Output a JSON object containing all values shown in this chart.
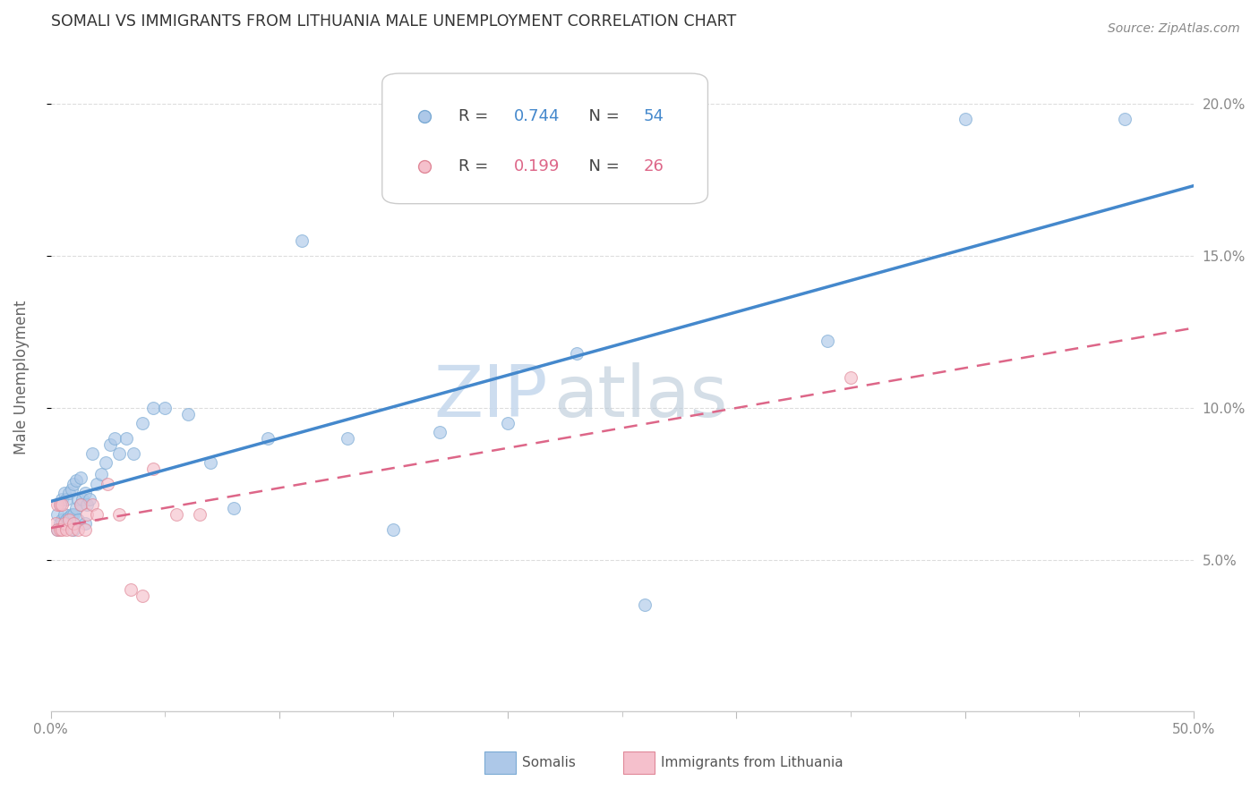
{
  "title": "SOMALI VS IMMIGRANTS FROM LITHUANIA MALE UNEMPLOYMENT CORRELATION CHART",
  "source": "Source: ZipAtlas.com",
  "ylabel": "Male Unemployment",
  "xlim": [
    0.0,
    0.5
  ],
  "ylim": [
    0.0,
    0.22
  ],
  "xtick_positions": [
    0.0,
    0.1,
    0.2,
    0.3,
    0.4,
    0.5
  ],
  "xtick_labels": [
    "0.0%",
    "",
    "",
    "",
    "",
    "50.0%"
  ],
  "ytick_positions": [
    0.05,
    0.1,
    0.15,
    0.2
  ],
  "ytick_labels": [
    "5.0%",
    "10.0%",
    "15.0%",
    "20.0%"
  ],
  "legend_somali_r": "0.744",
  "legend_somali_n": "54",
  "legend_lith_r": "0.199",
  "legend_lith_n": "26",
  "somali_fill": "#adc8e8",
  "somali_edge": "#7aaad4",
  "lith_fill": "#f5c0cc",
  "lith_edge": "#e08898",
  "somali_line_color": "#4488cc",
  "lith_line_color": "#dd6688",
  "watermark_zip": "ZIP",
  "watermark_atlas": "atlas",
  "watermark_color": "#ccdaeb",
  "grid_color": "#dddddd",
  "title_color": "#333333",
  "source_color": "#888888",
  "label_color": "#666666",
  "tick_color": "#888888",
  "somali_x": [
    0.003,
    0.003,
    0.004,
    0.004,
    0.005,
    0.005,
    0.006,
    0.006,
    0.007,
    0.007,
    0.008,
    0.008,
    0.009,
    0.009,
    0.01,
    0.01,
    0.01,
    0.011,
    0.011,
    0.012,
    0.012,
    0.013,
    0.013,
    0.014,
    0.015,
    0.015,
    0.016,
    0.017,
    0.018,
    0.02,
    0.022,
    0.024,
    0.026,
    0.028,
    0.03,
    0.033,
    0.036,
    0.04,
    0.045,
    0.05,
    0.06,
    0.07,
    0.08,
    0.095,
    0.11,
    0.13,
    0.15,
    0.17,
    0.2,
    0.23,
    0.26,
    0.34,
    0.4,
    0.47
  ],
  "somali_y": [
    0.06,
    0.065,
    0.062,
    0.068,
    0.063,
    0.07,
    0.065,
    0.072,
    0.063,
    0.07,
    0.064,
    0.072,
    0.065,
    0.073,
    0.06,
    0.065,
    0.075,
    0.067,
    0.076,
    0.063,
    0.07,
    0.068,
    0.077,
    0.07,
    0.062,
    0.072,
    0.068,
    0.07,
    0.085,
    0.075,
    0.078,
    0.082,
    0.088,
    0.09,
    0.085,
    0.09,
    0.085,
    0.095,
    0.1,
    0.1,
    0.098,
    0.082,
    0.067,
    0.09,
    0.155,
    0.09,
    0.06,
    0.092,
    0.095,
    0.118,
    0.035,
    0.122,
    0.195,
    0.195
  ],
  "lith_x": [
    0.002,
    0.003,
    0.003,
    0.004,
    0.004,
    0.005,
    0.005,
    0.006,
    0.007,
    0.008,
    0.009,
    0.01,
    0.012,
    0.013,
    0.015,
    0.016,
    0.018,
    0.02,
    0.025,
    0.03,
    0.035,
    0.04,
    0.045,
    0.055,
    0.065,
    0.35
  ],
  "lith_y": [
    0.062,
    0.06,
    0.068,
    0.06,
    0.068,
    0.06,
    0.068,
    0.062,
    0.06,
    0.063,
    0.06,
    0.062,
    0.06,
    0.068,
    0.06,
    0.065,
    0.068,
    0.065,
    0.075,
    0.065,
    0.04,
    0.038,
    0.08,
    0.065,
    0.065,
    0.11
  ],
  "marker_size": 100,
  "marker_alpha": 0.65
}
